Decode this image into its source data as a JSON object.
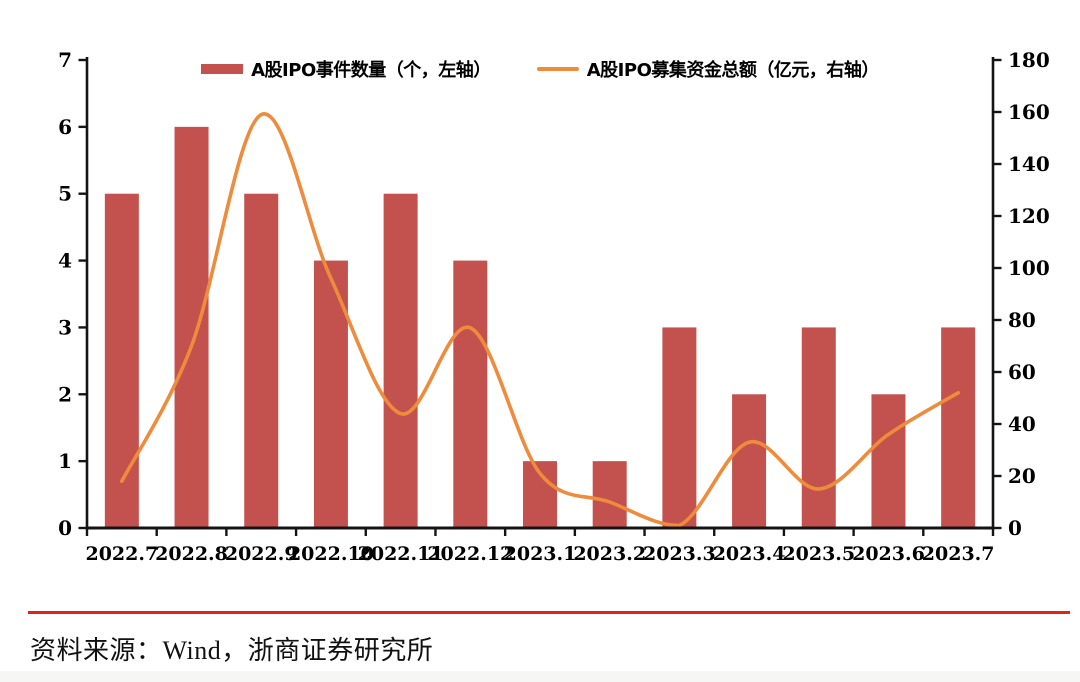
{
  "chart_data": {
    "type": "bar+line",
    "title": "",
    "categories": [
      "2022.7",
      "2022.8",
      "2022.9",
      "2022.10",
      "2022.11",
      "2022.12",
      "2023.1",
      "2023.2",
      "2023.3",
      "2023.4",
      "2023.5",
      "2023.6",
      "2023.7"
    ],
    "series": [
      {
        "name": "A股IPO事件数量（个，左轴）",
        "type": "bar",
        "axis": "left",
        "color": "#C3514E",
        "values": [
          5,
          6,
          5,
          4,
          5,
          4,
          1,
          1,
          3,
          2,
          3,
          2,
          3
        ]
      },
      {
        "name": "A股IPO募集资金总额（亿元，右轴）",
        "type": "line",
        "axis": "right",
        "color": "#EE8B3C",
        "smooth": true,
        "values": [
          18,
          70,
          159,
          96,
          44,
          77,
          21,
          10,
          1,
          33,
          15,
          36,
          52
        ]
      }
    ],
    "left_axis": {
      "min": 0,
      "max": 7,
      "step": 1,
      "tick_labels": [
        "0",
        "1",
        "2",
        "3",
        "4",
        "5",
        "6",
        "7"
      ]
    },
    "right_axis": {
      "min": 0,
      "max": 180,
      "step": 20,
      "tick_labels": [
        "0",
        "20",
        "40",
        "60",
        "80",
        "100",
        "120",
        "140",
        "160",
        "180"
      ]
    },
    "grid": false,
    "legend_position": "top-center",
    "axis_color": "#141414"
  },
  "footer": {
    "source_label": "资料来源：Wind，浙商证券研究所",
    "divider_color": "#E2231A"
  }
}
